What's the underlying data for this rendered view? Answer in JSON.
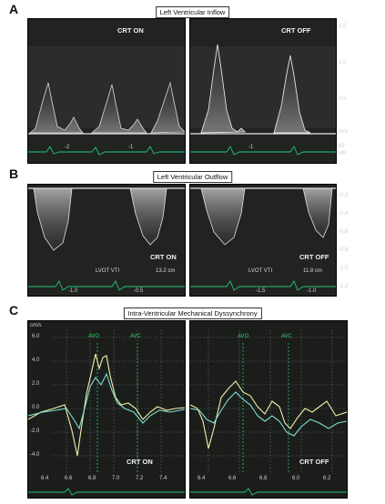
{
  "panel_a": {
    "letter": "A",
    "caption": "Left Ventricular Inflow",
    "left_label": "CRT ON",
    "right_label": "CRT OFF",
    "scale": [
      "1.5",
      "1.0",
      "0.5",
      "m/s"
    ],
    "bottom_ticks_left": [
      "-2",
      "-1"
    ],
    "bottom_ticks_right": [
      "-1"
    ],
    "hr_value": "63",
    "hr_label": "HR"
  },
  "panel_b": {
    "letter": "B",
    "caption": "Left Ventricular Outflow",
    "left_label": "CRT ON",
    "right_label": "CRT OFF",
    "left_vti_label": "LVOT VTI",
    "left_vti_value": "13.2 cm",
    "right_vti_label": "LVOT VTI",
    "right_vti_value": "11.8 cm",
    "scale": [
      "-0.2",
      "-0.4",
      "-0.6",
      "-0.8",
      "-1.0",
      "-1.2"
    ],
    "bottom_ticks_left": [
      "-1.0",
      "-0.5"
    ],
    "bottom_ticks_right": [
      "-1.5",
      "-1.0"
    ]
  },
  "panel_c": {
    "letter": "C",
    "caption": "Intra-Ventricular Mechanical Dyssynchrony",
    "left_label": "CRT ON",
    "right_label": "CRT OFF",
    "avo": "AVO",
    "avc": "AVC",
    "y_ticks": [
      "6.0",
      "4.0",
      "2.0",
      "0.0",
      "-2.0",
      "-4.0"
    ],
    "y_unit": "cm/s",
    "x_ticks_left": [
      "6.4",
      "6.6",
      "6.8",
      "7.0",
      "7.2",
      "7.4"
    ],
    "x_ticks_right": [
      "6.4",
      "6.6",
      "6.8",
      "6.0",
      "6.2"
    ]
  },
  "colors": {
    "background": "#1b1d1b",
    "trace_green": "#22c47a",
    "trace_yellow": "#f1f0a8",
    "trace_cyan": "#7fe0d0",
    "grid": "#6e6e6e"
  }
}
